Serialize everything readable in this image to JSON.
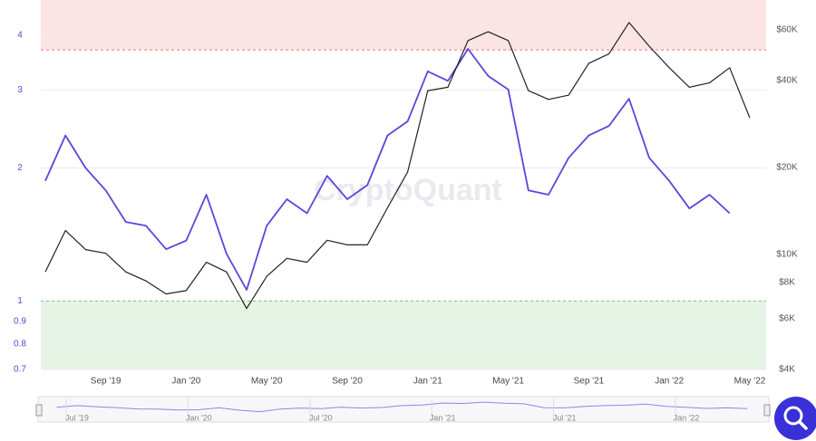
{
  "chart_data": {
    "type": "line",
    "watermark": "CryptoQuant",
    "x": [
      "2019-06",
      "2019-07",
      "2019-08",
      "2019-09",
      "2019-10",
      "2019-11",
      "2019-12",
      "2020-01",
      "2020-02",
      "2020-03",
      "2020-04",
      "2020-05",
      "2020-06",
      "2020-07",
      "2020-08",
      "2020-09",
      "2020-10",
      "2020-11",
      "2020-12",
      "2021-01",
      "2021-02",
      "2021-03",
      "2021-04",
      "2021-05",
      "2021-06",
      "2021-07",
      "2021-08",
      "2021-09",
      "2021-10",
      "2021-11",
      "2021-12",
      "2022-01",
      "2022-02",
      "2022-03",
      "2022-04",
      "2022-05"
    ],
    "xlim": [
      "2019-06",
      "2022-05"
    ],
    "xticks": [
      {
        "value": "2019-09",
        "label": "Sep '19"
      },
      {
        "value": "2020-01",
        "label": "Jan '20"
      },
      {
        "value": "2020-05",
        "label": "May '20"
      },
      {
        "value": "2020-09",
        "label": "Sep '20"
      },
      {
        "value": "2021-01",
        "label": "Jan '21"
      },
      {
        "value": "2021-05",
        "label": "May '21"
      },
      {
        "value": "2021-09",
        "label": "Sep '21"
      },
      {
        "value": "2022-01",
        "label": "Jan '22"
      },
      {
        "value": "2022-05",
        "label": "May '22"
      }
    ],
    "y_scale": "log",
    "ylim": [
      0.7,
      4.8
    ],
    "yticks": [
      0.7,
      0.8,
      0.9,
      1,
      2,
      3,
      4
    ],
    "grid": true,
    "y2_scale": "log",
    "y2lim": [
      4000,
      76000
    ],
    "y2ticks": [
      {
        "value": 4000,
        "label": "$4K"
      },
      {
        "value": 6000,
        "label": "$6K"
      },
      {
        "value": 8000,
        "label": "$8K"
      },
      {
        "value": 10000,
        "label": "$10K"
      },
      {
        "value": 20000,
        "label": "$20K"
      },
      {
        "value": 40000,
        "label": "$40K"
      },
      {
        "value": 60000,
        "label": "$60K"
      }
    ],
    "bands": [
      {
        "from": 3.7,
        "to": 4.8,
        "color": "#fde4e4",
        "line_color": "#e87a7a"
      },
      {
        "from": 0.7,
        "to": 1,
        "color": "#e6f4e6",
        "line_color": "#7cc47c"
      }
    ],
    "series": [
      {
        "color": "#5a46dc",
        "values": [
          1.87,
          2.37,
          2.0,
          1.78,
          1.51,
          1.48,
          1.31,
          1.37,
          1.74,
          1.28,
          1.06,
          1.48,
          1.7,
          1.58,
          1.92,
          1.7,
          1.83,
          2.37,
          2.55,
          3.31,
          3.15,
          3.72,
          3.23,
          3.01,
          1.78,
          1.74,
          2.11,
          2.37,
          2.49,
          2.87,
          2.11,
          1.87,
          1.62,
          1.74,
          1.58,
          null
        ]
      },
      {
        "color": "#222222",
        "axis": "y2",
        "values": [
          8700,
          12100,
          10400,
          10100,
          8700,
          8100,
          7300,
          7500,
          9400,
          8700,
          6500,
          8400,
          9700,
          9400,
          11200,
          10800,
          10800,
          14500,
          19300,
          36900,
          37900,
          55000,
          59000,
          55000,
          36900,
          34400,
          35600,
          45900,
          49500,
          63500,
          52600,
          44300,
          37900,
          39300,
          44300,
          29700
        ]
      }
    ],
    "navigator": {
      "ticks": [
        {
          "value": "2019-07",
          "label": "Jul '19"
        },
        {
          "value": "2020-01",
          "label": "Jan '20"
        },
        {
          "value": "2020-07",
          "label": "Jul '20"
        },
        {
          "value": "2021-01",
          "label": "Jan '21"
        },
        {
          "value": "2021-07",
          "label": "Jul '21"
        },
        {
          "value": "2022-01",
          "label": "Jan '22"
        }
      ],
      "color": "#8d85e6"
    }
  }
}
